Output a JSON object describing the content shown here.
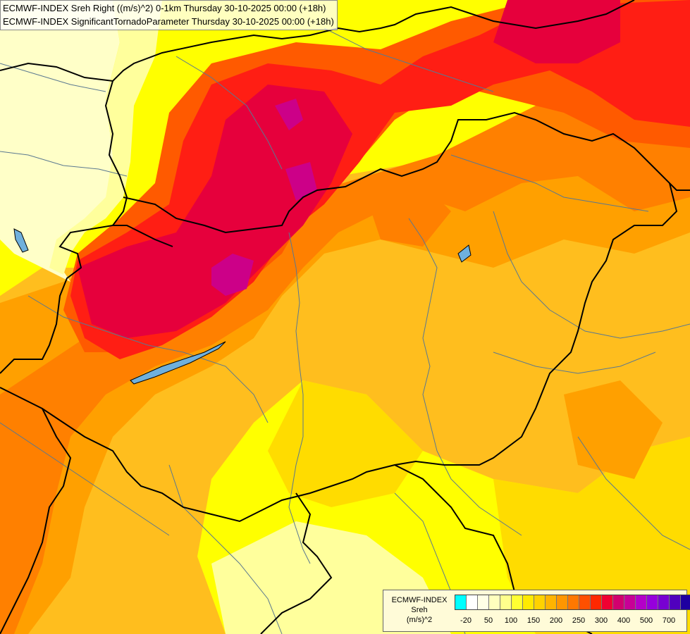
{
  "header": {
    "line1": "ECMWF-INDEX Sreh Right ((m/s)^2) 0-1km Thursday 30-10-2025 00:00 (+18h)",
    "line2": "ECMWF-INDEX SignificantTornadoParameter Thursday 30-10-2025 00:00 (+18h)"
  },
  "legend": {
    "name_line1": "ECMWF-INDEX",
    "name_line2": "Sreh",
    "name_line3": "(m/s)^2",
    "colors": [
      "#00ffff",
      "#ffffff",
      "#ffffe6",
      "#ffffbe",
      "#ffff8c",
      "#ffff32",
      "#ffea00",
      "#ffd200",
      "#ffb400",
      "#ff9600",
      "#ff7800",
      "#ff5000",
      "#ff2800",
      "#f00032",
      "#d2006e",
      "#c80096",
      "#b400c8",
      "#9600dc",
      "#7800d2",
      "#5000be",
      "#1e00a0"
    ],
    "ticks": [
      "-20",
      "50",
      "100",
      "150",
      "200",
      "250",
      "300",
      "400",
      "500",
      "700"
    ]
  },
  "map": {
    "background_color": "#ffff66",
    "border_color": "#000000",
    "river_color": "#5a7890",
    "lake_color": "#6fb0dc",
    "field_colors": {
      "pale": "#ffffc8",
      "light_yellow": "#ffff9c",
      "yellow": "#ffff00",
      "gold": "#ffdc00",
      "amber": "#ffbe1e",
      "orange": "#ffa000",
      "dark_orange": "#ff8000",
      "red_orange": "#ff5a00",
      "red": "#ff1e14",
      "crimson": "#e6003c",
      "magenta": "#cc0088"
    }
  }
}
